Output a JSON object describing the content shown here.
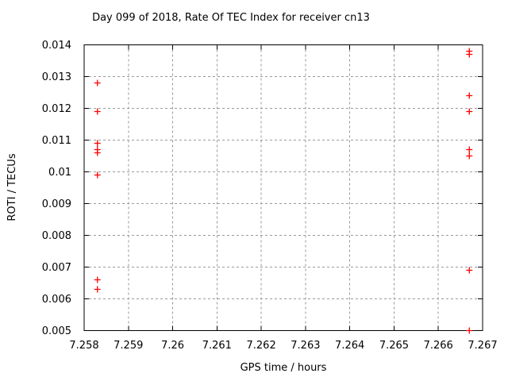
{
  "window": {
    "background_color": "#ffffff"
  },
  "chart_data": {
    "type": "scatter",
    "title": "Day 099 of 2018, Rate Of TEC Index for receiver cn13",
    "xlabel": "GPS time / hours",
    "ylabel": "ROTI / TECUs",
    "xlim": [
      7.258,
      7.267
    ],
    "ylim": [
      0.005,
      0.014
    ],
    "xtick_values": [
      7.258,
      7.259,
      7.26,
      7.261,
      7.262,
      7.263,
      7.264,
      7.265,
      7.266,
      7.267
    ],
    "xtick_labels": [
      "7.258",
      "7.259",
      "7.26",
      "7.261",
      "7.262",
      "7.263",
      "7.264",
      "7.265",
      "7.266",
      "7.267"
    ],
    "ytick_values": [
      0.005,
      0.006,
      0.007,
      0.008,
      0.009,
      0.01,
      0.011,
      0.012,
      0.013,
      0.014
    ],
    "ytick_labels": [
      "0.005",
      "0.006",
      "0.007",
      "0.008",
      "0.009",
      "0.01",
      "0.011",
      "0.012",
      "0.013",
      "0.014"
    ],
    "grid": true,
    "legend_position": "none",
    "marker": "plus",
    "marker_color": "#ff0000",
    "axis_color": "#000000",
    "grid_color": "#9a9a9a",
    "series": [
      {
        "name": "ROTI",
        "points": [
          [
            7.2583,
            0.0128
          ],
          [
            7.2583,
            0.0119
          ],
          [
            7.2583,
            0.0109
          ],
          [
            7.2583,
            0.0107
          ],
          [
            7.2583,
            0.0106
          ],
          [
            7.2583,
            0.0099
          ],
          [
            7.2583,
            0.0066
          ],
          [
            7.2583,
            0.0063
          ],
          [
            7.2667,
            0.0138
          ],
          [
            7.2667,
            0.0137
          ],
          [
            7.2667,
            0.0124
          ],
          [
            7.2667,
            0.0119
          ],
          [
            7.2667,
            0.0107
          ],
          [
            7.2667,
            0.0105
          ],
          [
            7.2667,
            0.0069
          ],
          [
            7.2667,
            0.005
          ]
        ]
      }
    ]
  }
}
